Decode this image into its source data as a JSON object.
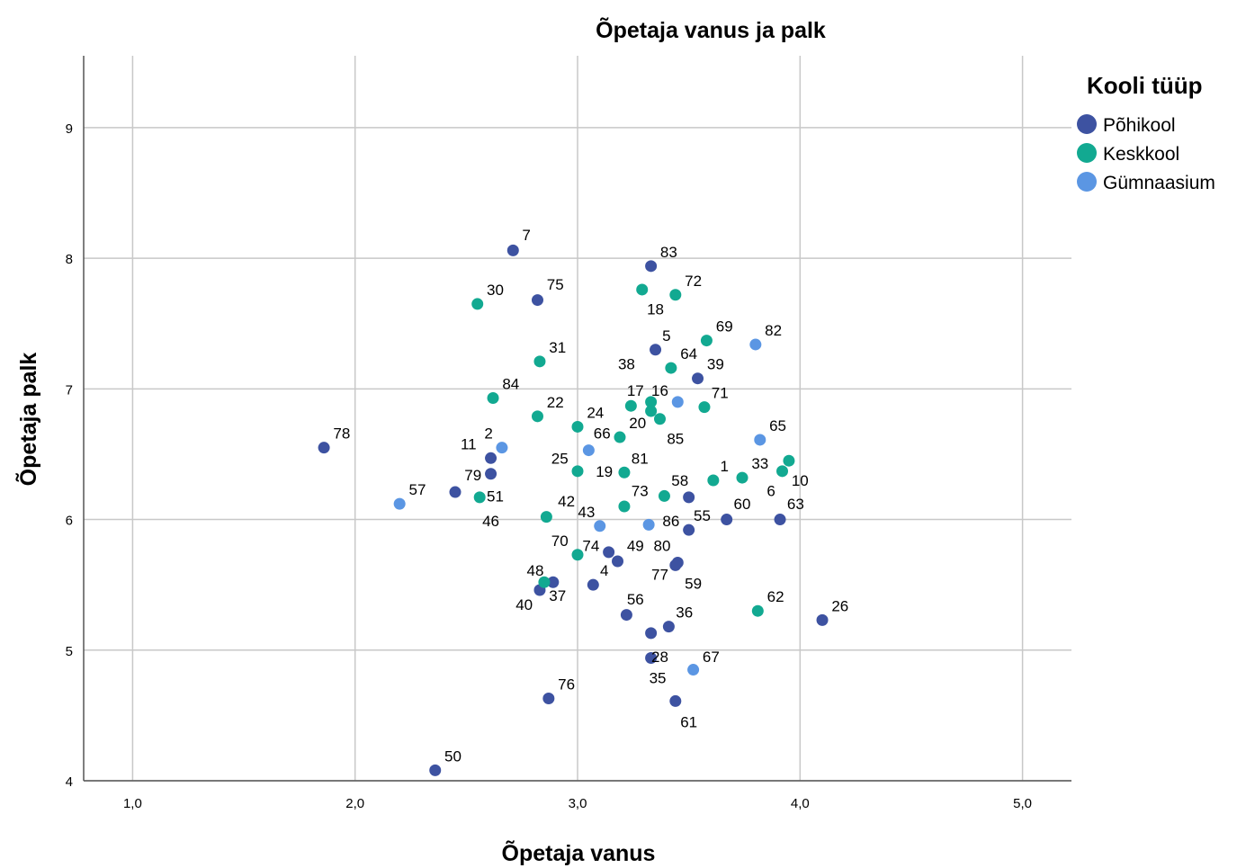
{
  "chart_data": {
    "type": "scatter",
    "title": "Õpetaja vanus ja palk",
    "xlabel": "Õpetaja vanus",
    "ylabel": "Õpetaja palk",
    "xlim": [
      0.78,
      5.22
    ],
    "ylim": [
      4,
      9.55
    ],
    "xticks": [
      1,
      2,
      3,
      4,
      5
    ],
    "xtick_labels": [
      "1,0",
      "2,0",
      "3,0",
      "4,0",
      "5,0"
    ],
    "yticks": [
      4,
      5,
      6,
      7,
      8,
      9
    ],
    "ytick_labels": [
      "4",
      "5",
      "6",
      "7",
      "8",
      "9"
    ],
    "grid": true,
    "legend": {
      "title": "Kooli tüüp",
      "placement": "top-right"
    },
    "series": [
      {
        "name": "Põhikool",
        "color": "#3d52a1",
        "points": [
          {
            "id": "7",
            "x": 2.71,
            "y": 8.06
          },
          {
            "id": "75",
            "x": 2.82,
            "y": 7.68
          },
          {
            "id": "83",
            "x": 3.33,
            "y": 7.94
          },
          {
            "id": "5",
            "x": 3.35,
            "y": 7.3
          },
          {
            "id": "39",
            "x": 3.54,
            "y": 7.08
          },
          {
            "id": "78",
            "x": 1.86,
            "y": 6.55
          },
          {
            "id": "11",
            "x": 2.61,
            "y": 6.47
          },
          {
            "id": "79",
            "x": 2.61,
            "y": 6.35
          },
          {
            "id": "51",
            "x": 2.45,
            "y": 6.21
          },
          {
            "id": "58",
            "x": 3.5,
            "y": 6.17
          },
          {
            "id": "60",
            "x": 3.67,
            "y": 6.0
          },
          {
            "id": "63",
            "x": 3.91,
            "y": 6.0
          },
          {
            "id": "55",
            "x": 3.5,
            "y": 5.92
          },
          {
            "id": "49",
            "x": 3.14,
            "y": 5.75
          },
          {
            "id": "74",
            "x": 3.18,
            "y": 5.68
          },
          {
            "id": "80",
            "x": 3.45,
            "y": 5.67
          },
          {
            "id": "77",
            "x": 3.44,
            "y": 5.65
          },
          {
            "id": "48",
            "x": 2.89,
            "y": 5.52
          },
          {
            "id": "4",
            "x": 3.07,
            "y": 5.5
          },
          {
            "id": "40",
            "x": 2.83,
            "y": 5.46
          },
          {
            "id": "56",
            "x": 3.22,
            "y": 5.27
          },
          {
            "id": "36",
            "x": 3.41,
            "y": 5.18
          },
          {
            "id": "26",
            "x": 4.1,
            "y": 5.23
          },
          {
            "id": "59",
            "x": 3.33,
            "y": 5.13
          },
          {
            "id": "28",
            "x": 3.33,
            "y": 4.94
          },
          {
            "id": "76",
            "x": 2.87,
            "y": 4.63
          },
          {
            "id": "61",
            "x": 3.44,
            "y": 4.61
          },
          {
            "id": "50",
            "x": 2.36,
            "y": 4.08
          }
        ]
      },
      {
        "name": "Keskkool",
        "color": "#12a991",
        "points": [
          {
            "id": "30",
            "x": 2.55,
            "y": 7.65
          },
          {
            "id": "72",
            "x": 3.44,
            "y": 7.72
          },
          {
            "id": "18",
            "x": 3.29,
            "y": 7.76
          },
          {
            "id": "69",
            "x": 3.58,
            "y": 7.37
          },
          {
            "id": "31",
            "x": 2.83,
            "y": 7.21
          },
          {
            "id": "64",
            "x": 3.42,
            "y": 7.16
          },
          {
            "id": "84",
            "x": 2.62,
            "y": 6.93
          },
          {
            "id": "22",
            "x": 2.82,
            "y": 6.79
          },
          {
            "id": "24",
            "x": 3.0,
            "y": 6.71
          },
          {
            "id": "17",
            "x": 3.24,
            "y": 6.87
          },
          {
            "id": "16",
            "x": 3.33,
            "y": 6.9
          },
          {
            "id": "38",
            "x": 3.33,
            "y": 6.83
          },
          {
            "id": "85",
            "x": 3.37,
            "y": 6.77
          },
          {
            "id": "71",
            "x": 3.57,
            "y": 6.86
          },
          {
            "id": "20",
            "x": 3.19,
            "y": 6.63
          },
          {
            "id": "25",
            "x": 3.0,
            "y": 6.37
          },
          {
            "id": "19",
            "x": 3.21,
            "y": 6.36
          },
          {
            "id": "1",
            "x": 3.61,
            "y": 6.3
          },
          {
            "id": "33",
            "x": 3.74,
            "y": 6.32
          },
          {
            "id": "6",
            "x": 3.92,
            "y": 6.37
          },
          {
            "id": "10",
            "x": 3.95,
            "y": 6.45
          },
          {
            "id": "81",
            "x": 3.39,
            "y": 6.18
          },
          {
            "id": "2",
            "x": 2.56,
            "y": 6.17
          },
          {
            "id": "73",
            "x": 3.21,
            "y": 6.1
          },
          {
            "id": "46",
            "x": 2.86,
            "y": 6.02
          },
          {
            "id": "70",
            "x": 3.0,
            "y": 5.73
          },
          {
            "id": "37",
            "x": 2.85,
            "y": 5.52
          },
          {
            "id": "62",
            "x": 3.81,
            "y": 5.3
          }
        ]
      },
      {
        "name": "Gümnaasium",
        "color": "#5b96e3",
        "points": [
          {
            "id": "82",
            "x": 3.8,
            "y": 7.34
          },
          {
            "id": "65",
            "x": 3.82,
            "y": 6.61
          },
          {
            "id": "24b",
            "x": 3.45,
            "y": 6.9
          },
          {
            "id": "57",
            "x": 2.2,
            "y": 6.12
          },
          {
            "id": "2b",
            "x": 2.66,
            "y": 6.55
          },
          {
            "id": "66",
            "x": 3.05,
            "y": 6.53
          },
          {
            "id": "43",
            "x": 3.1,
            "y": 5.95
          },
          {
            "id": "86",
            "x": 3.32,
            "y": 5.96
          },
          {
            "id": "67",
            "x": 3.52,
            "y": 4.85
          }
        ]
      }
    ],
    "point_labels": [
      {
        "text": "7",
        "x": 2.77,
        "y": 8.18
      },
      {
        "text": "75",
        "x": 2.9,
        "y": 7.8
      },
      {
        "text": "83",
        "x": 3.41,
        "y": 8.05
      },
      {
        "text": "30",
        "x": 2.63,
        "y": 7.76
      },
      {
        "text": "72",
        "x": 3.52,
        "y": 7.83
      },
      {
        "text": "18",
        "x": 3.35,
        "y": 7.61
      },
      {
        "text": "69",
        "x": 3.66,
        "y": 7.48
      },
      {
        "text": "82",
        "x": 3.88,
        "y": 7.45
      },
      {
        "text": "5",
        "x": 3.4,
        "y": 7.41
      },
      {
        "text": "64",
        "x": 3.5,
        "y": 7.27
      },
      {
        "text": "31",
        "x": 2.91,
        "y": 7.32
      },
      {
        "text": "38",
        "x": 3.22,
        "y": 7.19
      },
      {
        "text": "39",
        "x": 3.62,
        "y": 7.19
      },
      {
        "text": "84",
        "x": 2.7,
        "y": 7.04
      },
      {
        "text": "17",
        "x": 3.26,
        "y": 6.99
      },
      {
        "text": "16",
        "x": 3.37,
        "y": 6.99
      },
      {
        "text": "71",
        "x": 3.64,
        "y": 6.97
      },
      {
        "text": "22",
        "x": 2.9,
        "y": 6.9
      },
      {
        "text": "24",
        "x": 3.08,
        "y": 6.82
      },
      {
        "text": "65",
        "x": 3.9,
        "y": 6.72
      },
      {
        "text": "20",
        "x": 3.27,
        "y": 6.74
      },
      {
        "text": "66",
        "x": 3.11,
        "y": 6.66
      },
      {
        "text": "85",
        "x": 3.44,
        "y": 6.62
      },
      {
        "text": "2",
        "x": 2.6,
        "y": 6.66
      },
      {
        "text": "78",
        "x": 1.94,
        "y": 6.66
      },
      {
        "text": "11",
        "x": 2.51,
        "y": 6.58
      },
      {
        "text": "25",
        "x": 2.92,
        "y": 6.47
      },
      {
        "text": "81",
        "x": 3.28,
        "y": 6.47
      },
      {
        "text": "33",
        "x": 3.82,
        "y": 6.43
      },
      {
        "text": "19",
        "x": 3.12,
        "y": 6.37
      },
      {
        "text": "1",
        "x": 3.66,
        "y": 6.41
      },
      {
        "text": "79",
        "x": 2.53,
        "y": 6.34
      },
      {
        "text": "10",
        "x": 4.0,
        "y": 6.3
      },
      {
        "text": "58",
        "x": 3.46,
        "y": 6.3
      },
      {
        "text": "6",
        "x": 3.87,
        "y": 6.22
      },
      {
        "text": "73",
        "x": 3.28,
        "y": 6.22
      },
      {
        "text": "57",
        "x": 2.28,
        "y": 6.23
      },
      {
        "text": "51",
        "x": 2.63,
        "y": 6.18
      },
      {
        "text": "42",
        "x": 2.95,
        "y": 6.14
      },
      {
        "text": "60",
        "x": 3.74,
        "y": 6.12
      },
      {
        "text": "63",
        "x": 3.98,
        "y": 6.12
      },
      {
        "text": "43",
        "x": 3.04,
        "y": 6.06
      },
      {
        "text": "55",
        "x": 3.56,
        "y": 6.03
      },
      {
        "text": "86",
        "x": 3.42,
        "y": 5.99
      },
      {
        "text": "46",
        "x": 2.61,
        "y": 5.99
      },
      {
        "text": "70",
        "x": 2.92,
        "y": 5.84
      },
      {
        "text": "74",
        "x": 3.06,
        "y": 5.8
      },
      {
        "text": "49",
        "x": 3.26,
        "y": 5.8
      },
      {
        "text": "80",
        "x": 3.38,
        "y": 5.8
      },
      {
        "text": "48",
        "x": 2.81,
        "y": 5.61
      },
      {
        "text": "4",
        "x": 3.12,
        "y": 5.61
      },
      {
        "text": "77",
        "x": 3.37,
        "y": 5.58
      },
      {
        "text": "59",
        "x": 3.52,
        "y": 5.51
      },
      {
        "text": "37",
        "x": 2.91,
        "y": 5.42
      },
      {
        "text": "40",
        "x": 2.76,
        "y": 5.35
      },
      {
        "text": "56",
        "x": 3.26,
        "y": 5.39
      },
      {
        "text": "62",
        "x": 3.89,
        "y": 5.41
      },
      {
        "text": "26",
        "x": 4.18,
        "y": 5.34
      },
      {
        "text": "36",
        "x": 3.48,
        "y": 5.29
      },
      {
        "text": "28",
        "x": 3.37,
        "y": 4.95
      },
      {
        "text": "67",
        "x": 3.6,
        "y": 4.95
      },
      {
        "text": "35",
        "x": 3.36,
        "y": 4.79
      },
      {
        "text": "76",
        "x": 2.95,
        "y": 4.74
      },
      {
        "text": "61",
        "x": 3.5,
        "y": 4.45
      },
      {
        "text": "50",
        "x": 2.44,
        "y": 4.19
      }
    ]
  }
}
